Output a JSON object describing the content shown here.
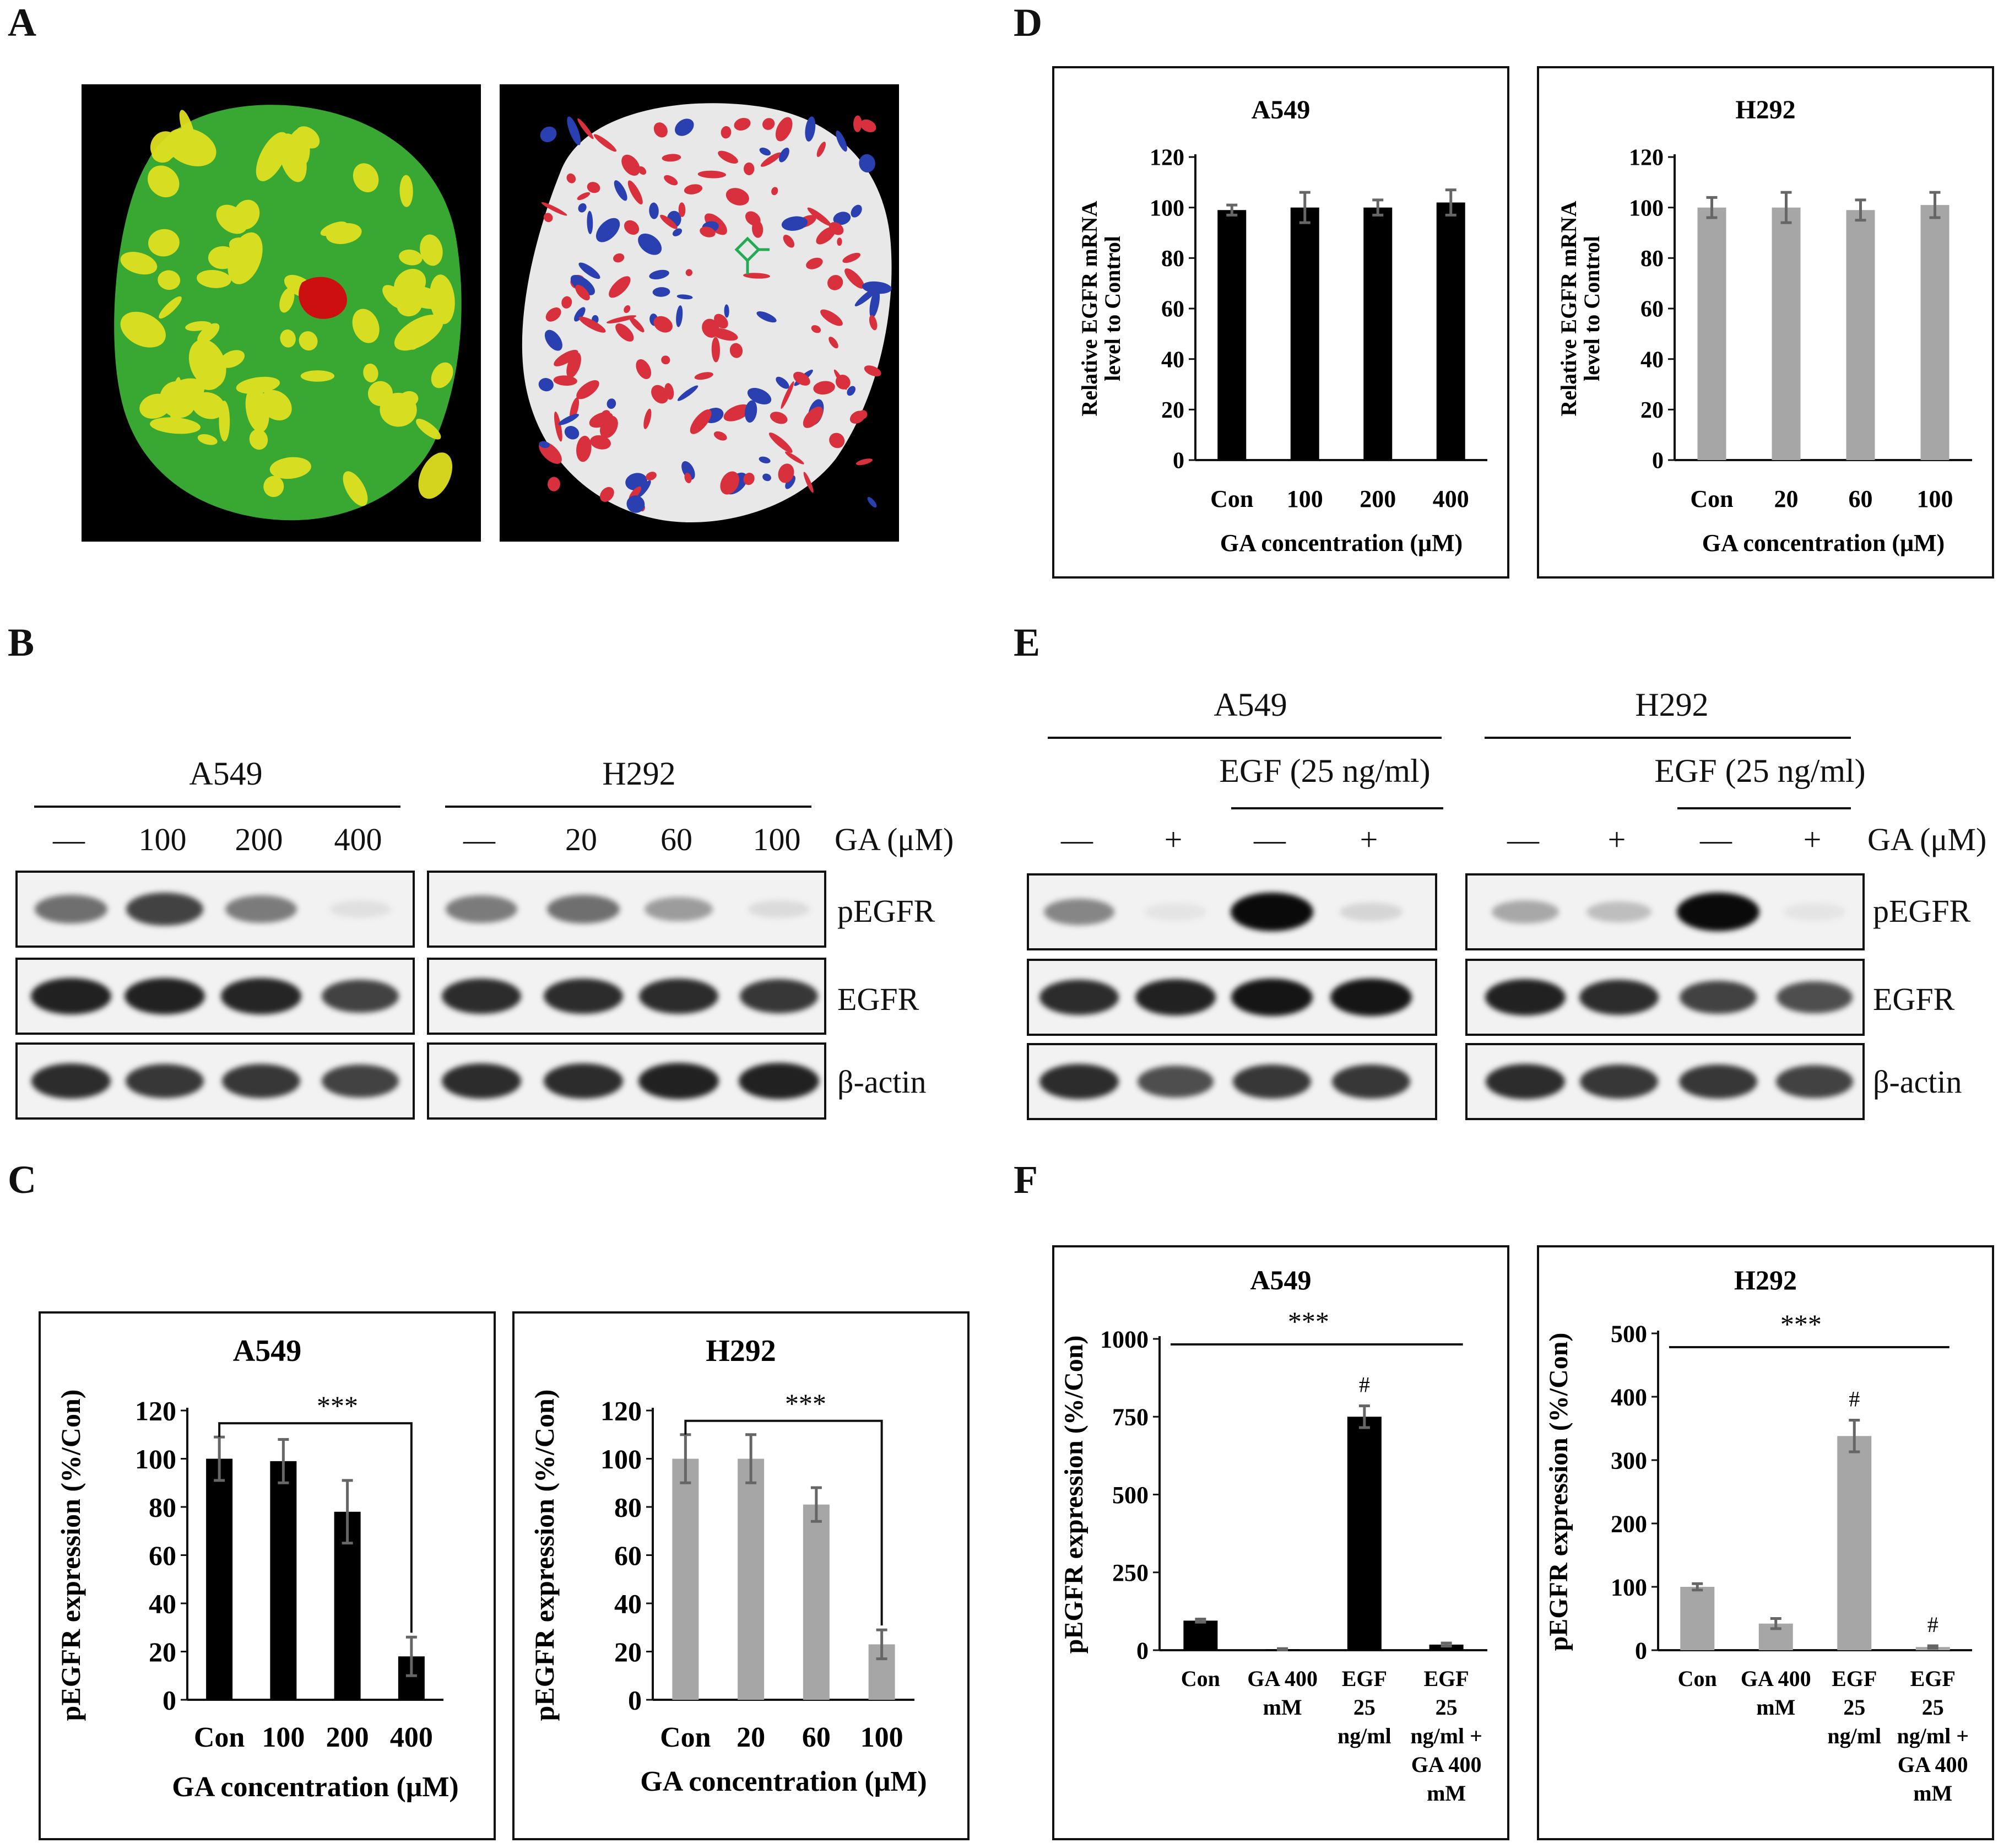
{
  "panel_labels": {
    "a": "A",
    "b": "B",
    "c": "C",
    "d": "D",
    "e": "E",
    "f": "F"
  },
  "panel_a": {
    "left_colors": {
      "surface": "#38a832",
      "patch": "#e0e020",
      "site": "#cc1010"
    },
    "right_colors": {
      "surface": "#e8e8e8",
      "acidic": "#d8303c",
      "basic": "#2a3fb0"
    }
  },
  "panel_b": {
    "groups": [
      {
        "cell": "A549",
        "lanes": [
          "—",
          "100",
          "200",
          "400"
        ],
        "pegfr": [
          0.55,
          0.75,
          0.5,
          0.05
        ],
        "egfr": [
          0.9,
          0.9,
          0.88,
          0.75
        ],
        "actin": [
          0.85,
          0.8,
          0.8,
          0.75
        ]
      },
      {
        "cell": "H292",
        "lanes": [
          "—",
          "20",
          "60",
          "100"
        ],
        "pegfr": [
          0.5,
          0.55,
          0.35,
          0.07
        ],
        "egfr": [
          0.85,
          0.85,
          0.85,
          0.8
        ],
        "actin": [
          0.85,
          0.85,
          0.9,
          0.9
        ]
      }
    ],
    "treatment_label": "GA (μM)",
    "rows": [
      "pEGFR",
      "EGFR",
      "β-actin"
    ]
  },
  "panel_e": {
    "groups": [
      {
        "cell": "A549",
        "lanes": [
          "—",
          "+",
          "—",
          "+"
        ],
        "pegfr": [
          0.45,
          0.03,
          1.0,
          0.1
        ],
        "egfr": [
          0.85,
          0.9,
          0.95,
          0.95
        ],
        "actin": [
          0.85,
          0.7,
          0.8,
          0.8
        ]
      },
      {
        "cell": "H292",
        "lanes": [
          "—",
          "+",
          "—",
          "+"
        ],
        "pegfr": [
          0.3,
          0.2,
          1.0,
          0.03
        ],
        "egfr": [
          0.9,
          0.85,
          0.75,
          0.7
        ],
        "actin": [
          0.85,
          0.8,
          0.8,
          0.75
        ]
      }
    ],
    "egf_label": "EGF (25 ng/ml)",
    "treatment_label": "GA (μM)",
    "rows": [
      "pEGFR",
      "EGFR",
      "β-actin"
    ]
  },
  "chart_data": [
    {
      "id": "C-A549",
      "type": "bar",
      "title": "A549",
      "categories": [
        "Con",
        "100",
        "200",
        "400"
      ],
      "values": [
        100,
        99,
        78,
        18
      ],
      "errors": [
        9,
        9,
        13,
        8
      ],
      "color": "#000000",
      "xlabel": "GA concentration  (μM)",
      "ylabel": "pEGFR expression (%/Con)",
      "ylim": [
        0,
        120
      ],
      "yticks": [
        0,
        20,
        40,
        60,
        80,
        100,
        120
      ],
      "annotation": "***"
    },
    {
      "id": "C-H292",
      "type": "bar",
      "title": "H292",
      "categories": [
        "Con",
        "20",
        "60",
        "100"
      ],
      "values": [
        100,
        100,
        81,
        23
      ],
      "errors": [
        10,
        10,
        7,
        6
      ],
      "color": "#a6a6a6",
      "xlabel": "GA concentration  (μM)",
      "ylabel": "pEGFR expression (%/Con)",
      "ylim": [
        0,
        120
      ],
      "yticks": [
        0,
        20,
        40,
        60,
        80,
        100,
        120
      ],
      "annotation": "***"
    },
    {
      "id": "D-A549",
      "type": "bar",
      "title": "A549",
      "categories": [
        "Con",
        "100",
        "200",
        "400"
      ],
      "values": [
        99,
        100,
        100,
        102
      ],
      "errors": [
        2,
        6,
        3,
        5
      ],
      "color": "#000000",
      "xlabel": "GA concentration  (μM)",
      "ylabel": "Relative EGFR mRNA level to Control",
      "ylim": [
        0,
        120
      ],
      "yticks": [
        0,
        20,
        40,
        60,
        80,
        100,
        120
      ]
    },
    {
      "id": "D-H292",
      "type": "bar",
      "title": "H292",
      "categories": [
        "Con",
        "20",
        "60",
        "100"
      ],
      "values": [
        100,
        100,
        99,
        101
      ],
      "errors": [
        4,
        6,
        4,
        5
      ],
      "color": "#a6a6a6",
      "xlabel": "GA concentration  (μM)",
      "ylabel": "Relative EGFR mRNA level to Control",
      "ylim": [
        0,
        120
      ],
      "yticks": [
        0,
        20,
        40,
        60,
        80,
        100,
        120
      ]
    },
    {
      "id": "F-A549",
      "type": "bar",
      "title": "A549",
      "categories": [
        "Con",
        "GA 400 mM",
        "EGF 25 ng/ml",
        "EGF 25 ng/ml + GA 400 mM"
      ],
      "values": [
        95,
        3,
        750,
        18
      ],
      "errors": [
        5,
        2,
        35,
        5
      ],
      "color": "#000000",
      "ylabel": "pEGFR expression (%/Con)",
      "ylim": [
        0,
        1000
      ],
      "yticks": [
        0,
        250,
        500,
        750,
        1000
      ],
      "annotation": "***",
      "marks": [
        "",
        "",
        "#",
        ""
      ]
    },
    {
      "id": "F-H292",
      "type": "bar",
      "title": "H292",
      "categories": [
        "Con",
        "GA 400 mM",
        "EGF 25 ng/ml",
        "EGF 25 ng/ml + GA 400 mM"
      ],
      "values": [
        100,
        42,
        338,
        5
      ],
      "errors": [
        5,
        8,
        25,
        2
      ],
      "color": "#a6a6a6",
      "ylabel": "pEGFR expression (%/Con)",
      "ylim": [
        0,
        500
      ],
      "yticks": [
        0,
        100,
        200,
        300,
        400,
        500
      ],
      "annotation": "***",
      "marks": [
        "",
        "",
        "#",
        "#"
      ]
    }
  ]
}
